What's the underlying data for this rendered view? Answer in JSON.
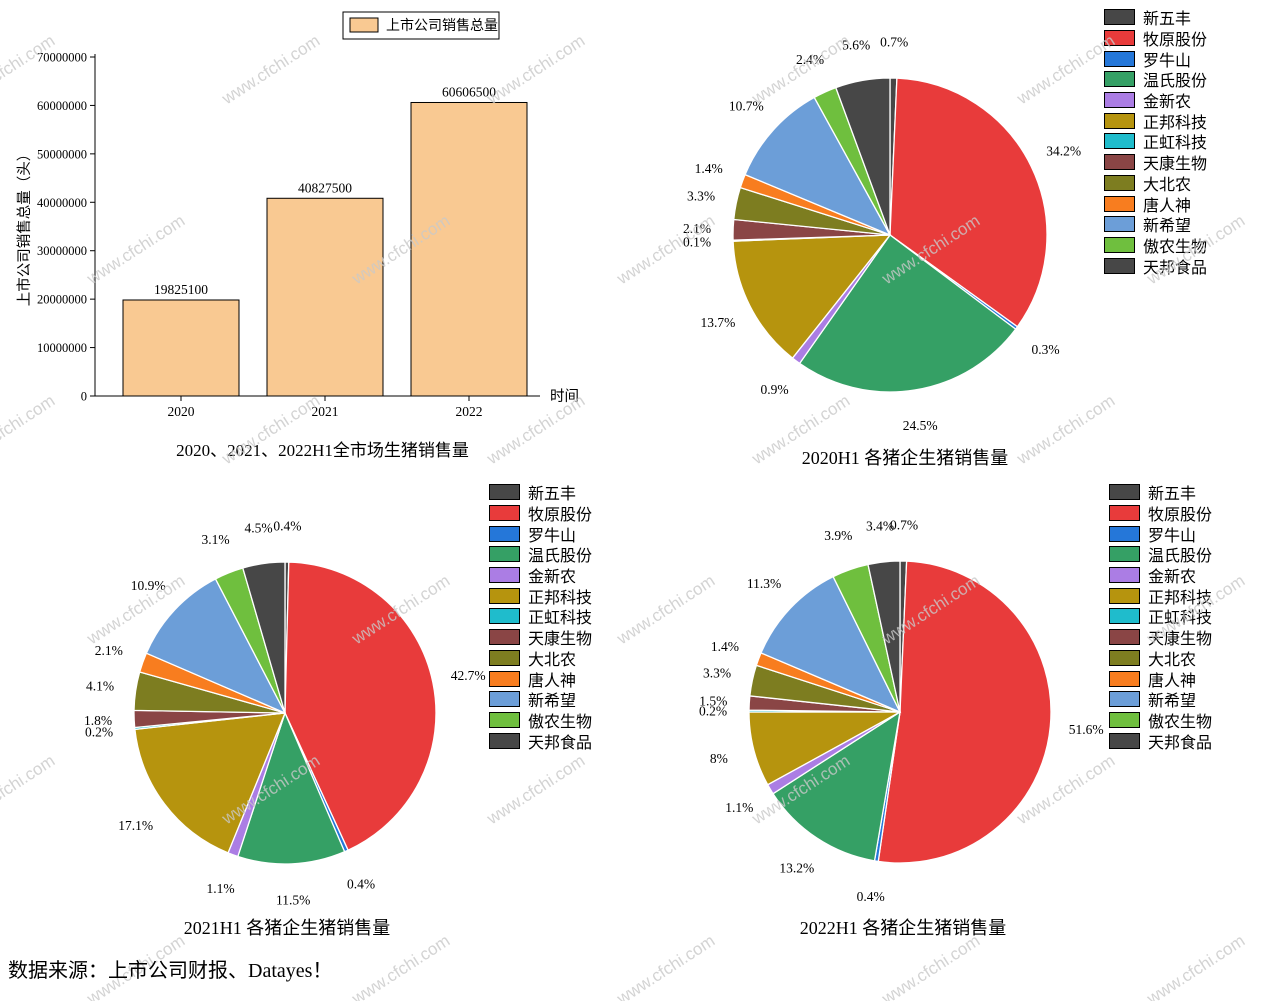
{
  "watermark": {
    "text": "www.cfchi.com"
  },
  "footer": {
    "text": "数据来源：上市公司财报、Datayes！"
  },
  "companies": [
    "新五丰",
    "牧原股份",
    "罗牛山",
    "温氏股份",
    "金新农",
    "正邦科技",
    "正虹科技",
    "天康生物",
    "大北农",
    "唐人神",
    "新希望",
    "傲农生物",
    "天邦食品"
  ],
  "company_colors": [
    "#474747",
    "#e83b3b",
    "#2577d9",
    "#35a065",
    "#ab7de4",
    "#b6940e",
    "#1fbccc",
    "#8a4545",
    "#7d7d20",
    "#f87d1f",
    "#6c9ed8",
    "#6fbf3e",
    "#474747"
  ],
  "chart_data": [
    {
      "type": "bar",
      "title": "2020、2021、2022H1全市场生猪销售量",
      "xlabel": "时间",
      "ylabel": "上市公司销售总量（头）",
      "legend": [
        "上市公司销售总量"
      ],
      "legend_position": "top-center",
      "bar_color": "#f9c992",
      "bar_edge_color": "#000000",
      "categories": [
        "2020",
        "2021",
        "2022"
      ],
      "values": [
        19825100,
        40827500,
        60606500
      ],
      "value_labels": [
        "19825100",
        "40827500",
        "60606500"
      ],
      "ylim": [
        0,
        70000000
      ],
      "ytick_labels": [
        "0",
        "10000000",
        "20000000",
        "30000000",
        "40000000",
        "50000000",
        "60000000",
        "70000000"
      ],
      "grid": false
    },
    {
      "type": "pie",
      "title": "2020H1  各猪企生猪销售量",
      "legend_position": "right",
      "categories": [
        "新五丰",
        "牧原股份",
        "罗牛山",
        "温氏股份",
        "金新农",
        "正邦科技",
        "正虹科技",
        "天康生物",
        "大北农",
        "唐人神",
        "新希望",
        "傲农生物",
        "天邦食品"
      ],
      "values": [
        0.7,
        34.2,
        0.3,
        24.5,
        0.9,
        13.7,
        0.1,
        2.1,
        3.3,
        1.4,
        10.7,
        2.4,
        5.6
      ],
      "labels": [
        "0.7%",
        "34.2%",
        "0.3%",
        "24.5%",
        "0.9%",
        "13.7%",
        "0.1%",
        "2.1%",
        "3.3%",
        "1.4%",
        "10.7%",
        "2.4%",
        "5.6%"
      ]
    },
    {
      "type": "pie",
      "title": "2021H1  各猪企生猪销售量",
      "legend_position": "right",
      "categories": [
        "新五丰",
        "牧原股份",
        "罗牛山",
        "温氏股份",
        "金新农",
        "正邦科技",
        "正虹科技",
        "天康生物",
        "大北农",
        "唐人神",
        "新希望",
        "傲农生物",
        "天邦食品"
      ],
      "values": [
        0.4,
        42.7,
        0.4,
        11.5,
        1.1,
        17.1,
        0.2,
        1.8,
        4.1,
        2.1,
        10.9,
        3.1,
        4.5
      ],
      "labels": [
        "0.4%",
        "42.7%",
        "0.4%",
        "11.5%",
        "1.1%",
        "17.1%",
        "0.2%",
        "1.8%",
        "4.1%",
        "2.1%",
        "10.9%",
        "3.1%",
        "4.5%"
      ]
    },
    {
      "type": "pie",
      "title": "2022H1  各猪企生猪销售量",
      "legend_position": "right",
      "categories": [
        "新五丰",
        "牧原股份",
        "罗牛山",
        "温氏股份",
        "金新农",
        "正邦科技",
        "正虹科技",
        "天康生物",
        "大北农",
        "唐人神",
        "新希望",
        "傲农生物",
        "天邦食品"
      ],
      "values": [
        0.7,
        51.6,
        0.4,
        13.2,
        1.1,
        8,
        0.2,
        1.5,
        3.3,
        1.4,
        11.3,
        3.9,
        3.4
      ],
      "labels": [
        "0.7%",
        "51.6%",
        "0.4%",
        "13.2%",
        "1.1%",
        "8%",
        "0.2%",
        "1.5%",
        "3.3%",
        "1.4%",
        "11.3%",
        "3.9%",
        "3.4%"
      ]
    }
  ]
}
